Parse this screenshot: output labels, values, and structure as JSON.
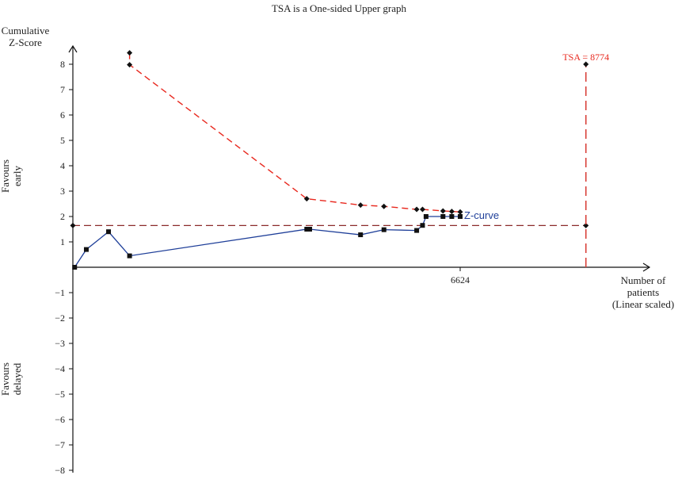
{
  "chart_data": {
    "type": "line",
    "title": "TSA is a One-sided Upper graph",
    "ylabel_lines": [
      "Cumulative",
      "Z-Score"
    ],
    "xlabel_lines": [
      "Number of",
      "patients",
      "(Linear scaled)"
    ],
    "side_labels": {
      "upper": [
        "Favours",
        "early"
      ],
      "lower": [
        "Favours",
        "delayed"
      ]
    },
    "xlim": [
      0,
      10200
    ],
    "ylim": [
      -8,
      8
    ],
    "y_ticks": [
      -8,
      -7,
      -6,
      -5,
      -4,
      -3,
      -2,
      -1,
      1,
      2,
      3,
      4,
      5,
      6,
      7,
      8
    ],
    "x_tick_labels": [
      {
        "value": 6624,
        "label": "6624"
      }
    ],
    "grid": false,
    "series": [
      {
        "name": "Z-curve",
        "color": "#1f3f99",
        "style": "solid",
        "marker": "square",
        "x": [
          30,
          230,
          610,
          970,
          4000,
          4050,
          4920,
          5320,
          5880,
          5980,
          6040,
          6330,
          6480,
          6624
        ],
        "y": [
          0.0,
          0.7,
          1.4,
          0.45,
          1.5,
          1.5,
          1.28,
          1.48,
          1.45,
          1.65,
          2.0,
          2.0,
          2.0,
          2.0
        ]
      },
      {
        "name": "",
        "color": "#e8281e",
        "style": "dashed",
        "marker": "diamond",
        "x": [
          970,
          970,
          4000,
          4920,
          5320,
          5880,
          5980,
          6330,
          6480,
          6624
        ],
        "y": [
          8.45,
          7.98,
          2.7,
          2.45,
          2.4,
          2.28,
          2.28,
          2.22,
          2.2,
          2.18
        ]
      }
    ],
    "reference_lines": [
      {
        "axis": "y",
        "value": 1.645,
        "x_from": 0,
        "x_to": 8774,
        "color": "#8b2a2a",
        "style": "dashed"
      },
      {
        "axis": "x",
        "value": 8774,
        "y_from": 0,
        "y_to": 8.0,
        "color": "#d8413a",
        "style": "dashed"
      }
    ],
    "annotations": [
      {
        "text": "TSA = 8774",
        "x": 8774,
        "y": 8.0,
        "color": "#e8281e"
      },
      {
        "text": "Z-curve",
        "x": 6624,
        "y": 2.0,
        "color": "#1f3f99"
      }
    ]
  }
}
